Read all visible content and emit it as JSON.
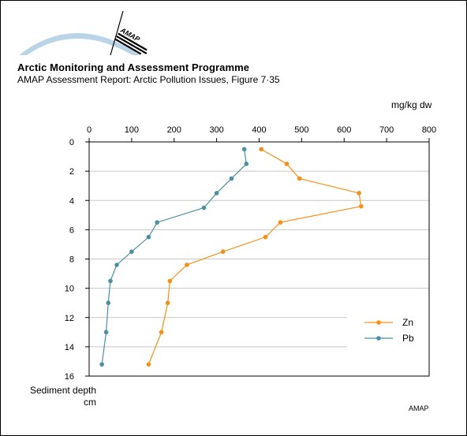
{
  "header": {
    "logo_text": "AMAP",
    "title": "Arctic Monitoring and Assessment Programme",
    "subtitle": "AMAP Assessment Report: Arctic Pollution Issues, Figure 7·35"
  },
  "footer": {
    "credit": "AMAP"
  },
  "colors": {
    "zn": "#f39019",
    "pb": "#4a8fa3",
    "grid": "#c8c8c8",
    "logo_arc": "#b8d4e6"
  },
  "chart_data": {
    "type": "line",
    "title": "",
    "xlabel": "mg/kg dw",
    "ylabel_line1": "Sediment depth",
    "ylabel_line2": "cm",
    "xlim": [
      0,
      800
    ],
    "ylim": [
      0,
      16
    ],
    "x_axis_position": "top",
    "y_axis_inverted": true,
    "x_ticks": [
      0,
      100,
      200,
      300,
      400,
      500,
      600,
      700,
      800
    ],
    "y_ticks": [
      0,
      2,
      4,
      6,
      8,
      10,
      12,
      14,
      16
    ],
    "grid": "horizontal",
    "legend_position": "right",
    "series": [
      {
        "name": "Zn",
        "color": "#f39019",
        "points": [
          [
            405,
            0.5
          ],
          [
            465,
            1.5
          ],
          [
            495,
            2.5
          ],
          [
            635,
            3.5
          ],
          [
            640,
            4.4
          ],
          [
            450,
            5.5
          ],
          [
            415,
            6.5
          ],
          [
            315,
            7.5
          ],
          [
            230,
            8.4
          ],
          [
            190,
            9.5
          ],
          [
            185,
            11
          ],
          [
            170,
            13
          ],
          [
            140,
            15.2
          ]
        ]
      },
      {
        "name": "Pb",
        "color": "#4a8fa3",
        "points": [
          [
            365,
            0.5
          ],
          [
            370,
            1.5
          ],
          [
            335,
            2.5
          ],
          [
            300,
            3.5
          ],
          [
            270,
            4.5
          ],
          [
            160,
            5.5
          ],
          [
            140,
            6.5
          ],
          [
            100,
            7.5
          ],
          [
            65,
            8.4
          ],
          [
            50,
            9.5
          ],
          [
            45,
            11
          ],
          [
            40,
            13
          ],
          [
            30,
            15.2
          ]
        ]
      }
    ]
  }
}
